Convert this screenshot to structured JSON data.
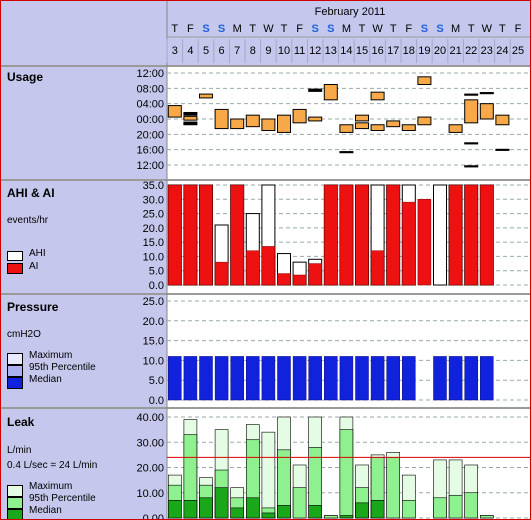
{
  "header": {
    "month_label": "February 2011",
    "days": [
      {
        "n": "3",
        "w": "T"
      },
      {
        "n": "4",
        "w": "F"
      },
      {
        "n": "5",
        "w": "S"
      },
      {
        "n": "6",
        "w": "S"
      },
      {
        "n": "7",
        "w": "M"
      },
      {
        "n": "8",
        "w": "T"
      },
      {
        "n": "9",
        "w": "W"
      },
      {
        "n": "10",
        "w": "T"
      },
      {
        "n": "11",
        "w": "F"
      },
      {
        "n": "12",
        "w": "S"
      },
      {
        "n": "13",
        "w": "S"
      },
      {
        "n": "14",
        "w": "M"
      },
      {
        "n": "15",
        "w": "T"
      },
      {
        "n": "16",
        "w": "W"
      },
      {
        "n": "17",
        "w": "T"
      },
      {
        "n": "18",
        "w": "F"
      },
      {
        "n": "19",
        "w": "S"
      },
      {
        "n": "20",
        "w": "S"
      },
      {
        "n": "21",
        "w": "M"
      },
      {
        "n": "22",
        "w": "T"
      },
      {
        "n": "23",
        "w": "W"
      },
      {
        "n": "24",
        "w": "T"
      },
      {
        "n": "25",
        "w": "F"
      }
    ],
    "weekend_color": "#2060e0"
  },
  "panels": {
    "usage": {
      "title": "Usage"
    },
    "ahi": {
      "title": "AHI & AI",
      "unit": "events/hr",
      "legend": [
        "AHI",
        "AI"
      ]
    },
    "pressure": {
      "title": "Pressure",
      "unit": "cmH2O",
      "legend": [
        "Maximum",
        "95th Percentile",
        "Median"
      ]
    },
    "leak": {
      "title": "Leak",
      "unit": "L/min",
      "note": "0.4 L/sec = 24 L/min",
      "legend": [
        "Maximum",
        "95th Percentile",
        "Median"
      ]
    }
  },
  "colors": {
    "usage_fill": "#f7a94a",
    "ai": "#ee1111",
    "pressure_median": "#1122dd",
    "pressure_p95": "#aab0f0",
    "pressure_max": "#e8eaff",
    "leak_median": "#1aa81a",
    "leak_p95": "#8ef08e",
    "leak_max": "#e4fbe4",
    "leak_threshold": "#dd0000"
  },
  "chart_data": [
    {
      "type": "bar",
      "title": "Usage",
      "x": [
        "3",
        "4",
        "5",
        "6",
        "7",
        "8",
        "9",
        "10",
        "11",
        "12",
        "13",
        "14",
        "15",
        "16",
        "17",
        "18",
        "19",
        "20",
        "21",
        "22",
        "23",
        "24",
        "25"
      ],
      "ytick_labels": [
        "12:00",
        "08:00",
        "04:00",
        "00:00",
        "20:00",
        "16:00",
        "12:00"
      ],
      "note": "session blocks in hours relative to midnight (positive = after midnight)",
      "sessions": [
        [
          [
            0.5,
            3.5
          ]
        ],
        [
          [
            -1.5,
            -0.8
          ],
          [
            -0.3,
            0.7
          ],
          [
            1.0,
            1.7
          ]
        ],
        [
          [
            5.5,
            6.5
          ]
        ],
        [
          [
            -2.5,
            2.5
          ]
        ],
        [
          [
            -2.5,
            0.0
          ]
        ],
        [
          [
            -2.0,
            1.0
          ]
        ],
        [
          [
            -3.0,
            0.0
          ]
        ],
        [
          [
            -3.5,
            1.0
          ]
        ],
        [
          [
            -1.0,
            2.5
          ]
        ],
        [
          [
            -0.5,
            0.5
          ],
          [
            7.2,
            7.8
          ]
        ],
        [
          [
            5.0,
            9.0
          ]
        ],
        [
          [
            -3.5,
            -1.5
          ],
          [
            -8.8,
            -8.5
          ]
        ],
        [
          [
            -2.5,
            -1.0
          ],
          [
            -0.5,
            1.0
          ]
        ],
        [
          [
            -3.0,
            -1.5
          ],
          [
            5.0,
            7.0
          ]
        ],
        [
          [
            -2.0,
            -0.5
          ]
        ],
        [
          [
            -3.0,
            -1.5
          ]
        ],
        [
          [
            -1.5,
            0.5
          ],
          [
            9.0,
            11.0
          ]
        ],
        [],
        [
          [
            -3.5,
            -1.5
          ]
        ],
        [
          [
            -1.0,
            5.0
          ],
          [
            6.2,
            6.5
          ],
          [
            -6.5,
            -6.2
          ],
          [
            -12.5,
            -12.2
          ]
        ],
        [
          [
            0.0,
            4.0
          ],
          [
            6.6,
            6.9
          ]
        ],
        [
          [
            -1.5,
            1.0
          ],
          [
            -8.2,
            -7.9
          ]
        ],
        []
      ]
    },
    {
      "type": "bar",
      "title": "AHI & AI",
      "ylabel": "events/hr",
      "ylim": [
        0,
        35
      ],
      "x": [
        "3",
        "4",
        "5",
        "6",
        "7",
        "8",
        "9",
        "10",
        "11",
        "12",
        "13",
        "14",
        "15",
        "16",
        "17",
        "18",
        "19",
        "20",
        "21",
        "22",
        "23",
        "24",
        "25"
      ],
      "series": [
        {
          "name": "AHI",
          "values": [
            35,
            35,
            35,
            21,
            35,
            25,
            35,
            11,
            8,
            9,
            35,
            35,
            35,
            35,
            35,
            35,
            null,
            35,
            35,
            35,
            35,
            null,
            null
          ]
        },
        {
          "name": "AI",
          "values": [
            35,
            35,
            35,
            8,
            35,
            12,
            13.5,
            4,
            3.5,
            7.5,
            35,
            35,
            35,
            12,
            35,
            29,
            30,
            null,
            35,
            35,
            35,
            null,
            null
          ]
        }
      ]
    },
    {
      "type": "bar",
      "title": "Pressure",
      "ylabel": "cmH2O",
      "ylim": [
        0,
        25
      ],
      "x": [
        "3",
        "4",
        "5",
        "6",
        "7",
        "8",
        "9",
        "10",
        "11",
        "12",
        "13",
        "14",
        "15",
        "16",
        "17",
        "18",
        "19",
        "20",
        "21",
        "22",
        "23",
        "24",
        "25"
      ],
      "series": [
        {
          "name": "Median",
          "values": [
            11,
            11,
            11,
            11,
            11,
            11,
            11,
            11,
            11,
            11,
            11,
            11,
            11,
            11,
            11,
            11,
            null,
            11,
            11,
            11,
            11,
            null,
            null
          ]
        }
      ]
    },
    {
      "type": "bar",
      "title": "Leak",
      "ylabel": "L/min",
      "ylim": [
        0,
        40
      ],
      "threshold": 24,
      "x": [
        "3",
        "4",
        "5",
        "6",
        "7",
        "8",
        "9",
        "10",
        "11",
        "12",
        "13",
        "14",
        "15",
        "16",
        "17",
        "18",
        "19",
        "20",
        "21",
        "22",
        "23",
        "24",
        "25"
      ],
      "series": [
        {
          "name": "Maximum",
          "values": [
            17,
            39,
            16,
            35,
            12,
            37,
            34,
            40,
            21,
            40,
            1,
            40,
            21,
            25,
            26,
            17,
            null,
            23,
            23,
            21,
            1,
            null,
            null
          ]
        },
        {
          "name": "95th Percentile",
          "values": [
            13,
            33,
            13,
            19,
            8,
            31,
            4,
            27,
            12,
            28,
            1,
            35,
            12,
            24,
            24,
            7,
            null,
            8,
            9,
            10,
            1,
            null,
            null
          ]
        },
        {
          "name": "Median",
          "values": [
            7,
            7,
            8,
            12,
            4,
            8,
            2,
            5,
            0,
            5,
            0,
            1,
            6,
            7,
            0,
            0,
            null,
            0,
            0,
            0,
            0,
            null,
            null
          ]
        }
      ]
    }
  ]
}
